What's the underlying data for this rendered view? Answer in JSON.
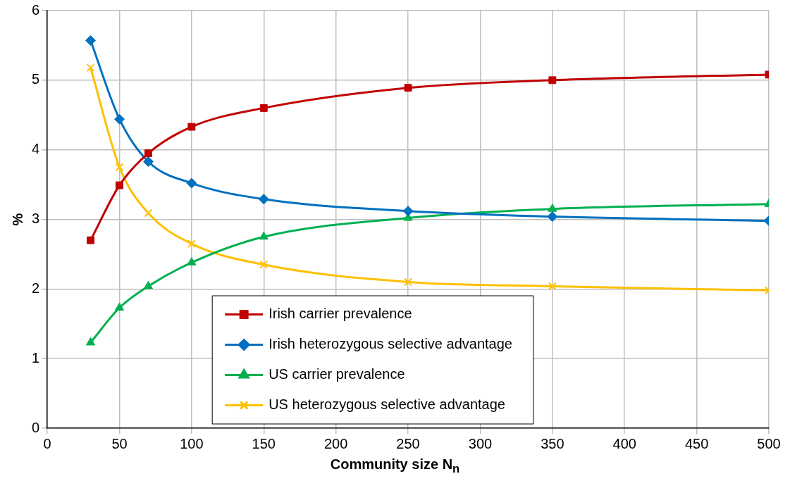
{
  "chart_data": {
    "type": "line",
    "xlabel": "Community size N$_{n}$",
    "ylabel": "%",
    "x": [
      30,
      50,
      70,
      100,
      150,
      250,
      350,
      500
    ],
    "xlim": [
      0,
      500
    ],
    "xticks": [
      0,
      50,
      100,
      150,
      200,
      250,
      300,
      350,
      400,
      450,
      500
    ],
    "ylim": [
      0,
      6
    ],
    "yticks": [
      0,
      1,
      2,
      3,
      4,
      5,
      6
    ],
    "grid": true,
    "legend": "bottom",
    "series": [
      {
        "name": "Irish carrier prevalence",
        "color": "#c00000",
        "marker": "square",
        "values": [
          2.7,
          3.49,
          3.95,
          4.33,
          4.6,
          4.89,
          5.0,
          5.08
        ]
      },
      {
        "name": "Irish heterozygous selective advantage",
        "color": "#0070c0",
        "marker": "diamond",
        "values": [
          5.57,
          4.44,
          3.83,
          3.52,
          3.29,
          3.12,
          3.04,
          2.98
        ]
      },
      {
        "name": "US carrier prevalence",
        "color": "#00b050",
        "marker": "triangle",
        "values": [
          1.23,
          1.73,
          2.04,
          2.38,
          2.75,
          3.02,
          3.15,
          3.22
        ]
      },
      {
        "name": "US heterozygous selective advantage",
        "color": "#ffc000",
        "marker": "cross",
        "values": [
          5.18,
          3.75,
          3.09,
          2.65,
          2.35,
          2.1,
          2.04,
          1.98
        ]
      }
    ]
  }
}
